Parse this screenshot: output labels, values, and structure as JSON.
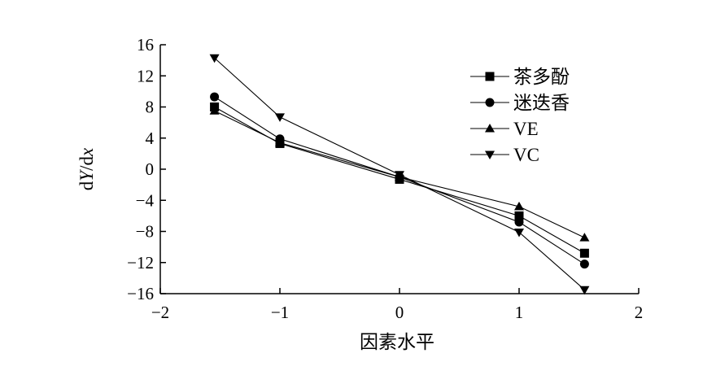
{
  "chart_data": {
    "type": "line",
    "xlabel": "因素水平",
    "ylabel": "dY/dx",
    "xlim": [
      -2,
      2
    ],
    "ylim": [
      -16,
      16
    ],
    "xticks": [
      -2,
      -1,
      0,
      1,
      2
    ],
    "yticks": [
      16,
      12,
      8,
      4,
      0,
      -4,
      -8,
      -12,
      -16
    ],
    "xtick_labels": [
      "−2",
      "−1",
      "0",
      "1",
      "2"
    ],
    "ytick_labels": [
      "16",
      "12",
      "8",
      "4",
      "0",
      "−4",
      "−8",
      "−12",
      "−16"
    ],
    "grid": false,
    "legend_position": "top-right",
    "x": [
      -1.547,
      -1,
      0,
      1,
      1.547
    ],
    "series": [
      {
        "name": "茶多酚",
        "marker": "square",
        "values": [
          8.0,
          3.3,
          -1.3,
          -6.0,
          -10.8
        ]
      },
      {
        "name": "迷迭香",
        "marker": "circle",
        "values": [
          9.3,
          3.9,
          -1.0,
          -6.8,
          -12.2
        ]
      },
      {
        "name": "VE",
        "marker": "triangle-up",
        "values": [
          7.5,
          3.4,
          -1.0,
          -4.8,
          -8.8
        ]
      },
      {
        "name": "VC",
        "marker": "triangle-down",
        "values": [
          14.3,
          6.7,
          -0.7,
          -8.1,
          -15.5
        ]
      }
    ]
  }
}
